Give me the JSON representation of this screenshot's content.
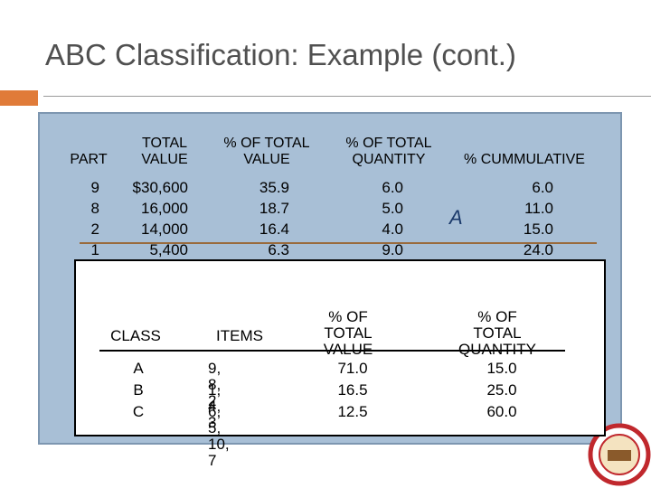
{
  "header": {
    "title": "ABC Classification: Example (cont.)"
  },
  "table1": {
    "headers": [
      "PART",
      "TOTAL\nVALUE",
      "% OF TOTAL\nVALUE",
      "% OF TOTAL\nQUANTITY",
      "% CUMMULATIVE"
    ],
    "rows": [
      [
        "9",
        "$30,600",
        "35.9",
        "6.0",
        "6.0"
      ],
      [
        "8",
        "16,000",
        "18.7",
        "5.0",
        "11.0"
      ],
      [
        "2",
        "14,000",
        "16.4",
        "4.0",
        "15.0"
      ],
      [
        "1",
        "5,400",
        "6.3",
        "9.0",
        "24.0"
      ]
    ],
    "class_label": "A"
  },
  "table2": {
    "headers": [
      "CLASS",
      "ITEMS",
      "% OF TOTAL\nVALUE",
      "% OF TOTAL\nQUANTITY"
    ],
    "rows": [
      [
        "A",
        "9, 8, 2",
        "71.0",
        "15.0"
      ],
      [
        "B",
        "1, 4, 3",
        "16.5",
        "25.0"
      ],
      [
        "C",
        "6, 5, 10, 7",
        "12.5",
        "60.0"
      ]
    ]
  }
}
